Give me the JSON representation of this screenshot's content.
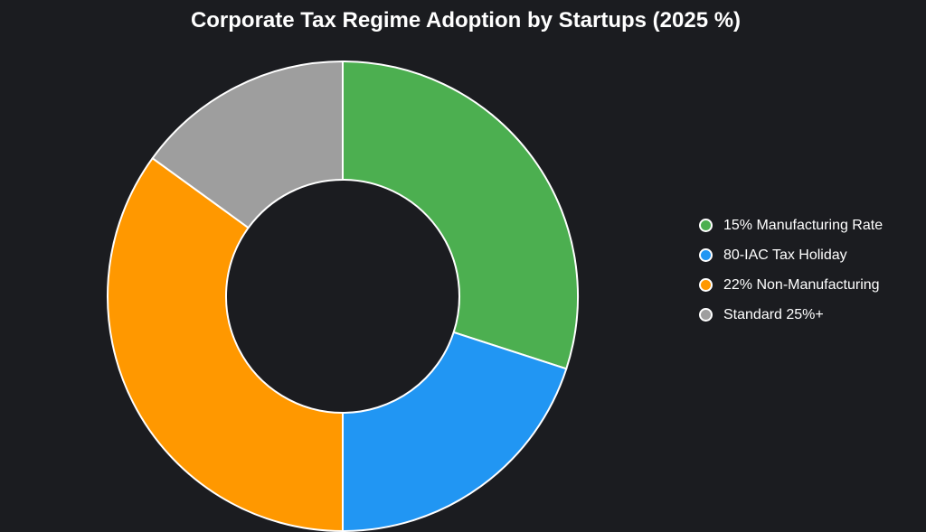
{
  "chart_data": {
    "type": "pie",
    "title": "Corporate Tax Regime Adoption by Startups (2025 %)",
    "categories": [
      "15% Manufacturing Rate",
      "80-IAC Tax Holiday",
      "22% Non-Manufacturing",
      "Standard 25%+"
    ],
    "values": [
      30,
      20,
      35,
      15
    ],
    "colors": [
      "#4caf50",
      "#2196f3",
      "#ff9800",
      "#9e9e9e"
    ],
    "donut": true,
    "legend_position": "right"
  }
}
